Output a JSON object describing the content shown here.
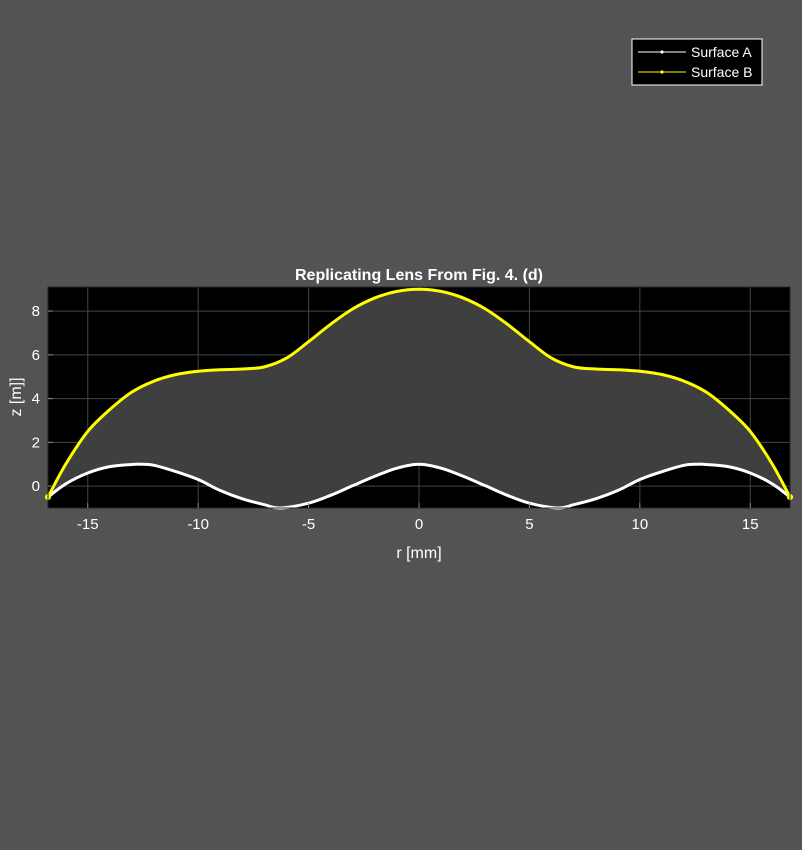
{
  "chart_data": {
    "type": "line",
    "title": "Replicating Lens From Fig. 4. (d)",
    "xlabel": "r  [mm]",
    "ylabel": "z  [m]]",
    "xlim": [
      -16.8,
      16.8
    ],
    "ylim": [
      -1,
      9.1
    ],
    "xticks": [
      -15,
      -10,
      -5,
      0,
      5,
      10,
      15
    ],
    "yticks": [
      0,
      2,
      4,
      6,
      8
    ],
    "grid": true,
    "legend_position": "top-right",
    "colors": {
      "figure_background": "#535353",
      "axes_background": "#000000",
      "lens_fill": "#3f3f3f",
      "grid": "#444444",
      "text": "#ffffff"
    },
    "series": [
      {
        "name": "Surface A",
        "color": "#ffffff",
        "x": [
          -16.8,
          -16,
          -15,
          -14,
          -13,
          -12.6,
          -12,
          -11,
          -10,
          -9,
          -8,
          -7,
          -6.3,
          -5,
          -4,
          -3,
          -2,
          -1,
          0,
          1,
          2,
          3,
          4,
          5,
          6.3,
          7,
          8,
          9,
          10,
          11,
          12,
          12.6,
          13,
          14,
          15,
          16,
          16.8
        ],
        "y": [
          -0.5,
          0.1,
          0.6,
          0.89,
          0.99,
          1.0,
          0.95,
          0.66,
          0.3,
          -0.2,
          -0.58,
          -0.85,
          -1.0,
          -0.78,
          -0.42,
          0.02,
          0.45,
          0.82,
          1.0,
          0.82,
          0.45,
          0.02,
          -0.42,
          -0.78,
          -1.0,
          -0.85,
          -0.58,
          -0.2,
          0.3,
          0.66,
          0.95,
          1.0,
          0.99,
          0.89,
          0.6,
          0.1,
          -0.5
        ]
      },
      {
        "name": "Surface B",
        "color": "#ffff00",
        "x": [
          -16.8,
          -16,
          -15,
          -14,
          -13,
          -12,
          -11,
          -10,
          -9,
          -8,
          -7,
          -6,
          -5,
          -4,
          -3,
          -2,
          -1,
          0,
          1,
          2,
          3,
          4,
          5,
          6,
          7,
          8,
          9,
          10,
          11,
          12,
          13,
          14,
          15,
          16,
          16.8
        ],
        "y": [
          -0.5,
          1.0,
          2.5,
          3.5,
          4.3,
          4.8,
          5.1,
          5.25,
          5.32,
          5.35,
          5.45,
          5.85,
          6.6,
          7.4,
          8.1,
          8.6,
          8.9,
          9.0,
          8.9,
          8.6,
          8.1,
          7.4,
          6.6,
          5.85,
          5.45,
          5.35,
          5.32,
          5.25,
          5.1,
          4.8,
          4.3,
          3.5,
          2.5,
          1.0,
          -0.5
        ]
      }
    ]
  }
}
